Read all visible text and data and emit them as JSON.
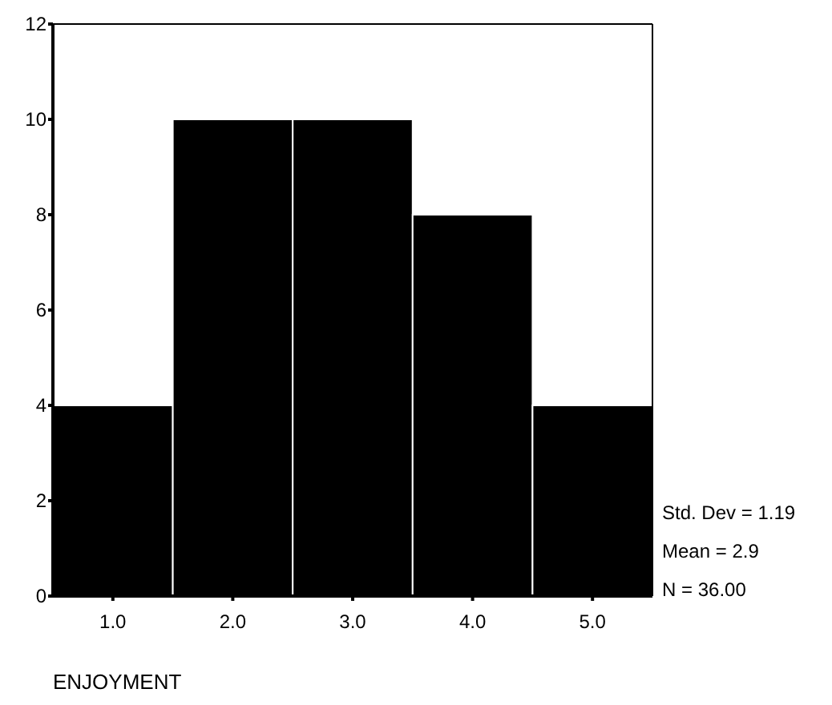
{
  "chart_data": {
    "type": "histogram",
    "xlabel": "ENJOYMENT",
    "bins": [
      0.5,
      1.5,
      2.5,
      3.5,
      4.5,
      5.5
    ],
    "values": [
      4,
      10,
      10,
      8,
      4
    ],
    "color": "#000000",
    "xlim": [
      0.5,
      5.5
    ],
    "xticks": [
      {
        "value": 1,
        "label": "1.0"
      },
      {
        "value": 2,
        "label": "2.0"
      },
      {
        "value": 3,
        "label": "3.0"
      },
      {
        "value": 4,
        "label": "4.0"
      },
      {
        "value": 5,
        "label": "5.0"
      }
    ],
    "ylim": [
      0,
      12
    ],
    "yticks": [
      0,
      2,
      4,
      6,
      8,
      10,
      12
    ],
    "annotations": [
      "Std. Dev = 1.19",
      "Mean = 2.9",
      "N = 36.00"
    ]
  }
}
